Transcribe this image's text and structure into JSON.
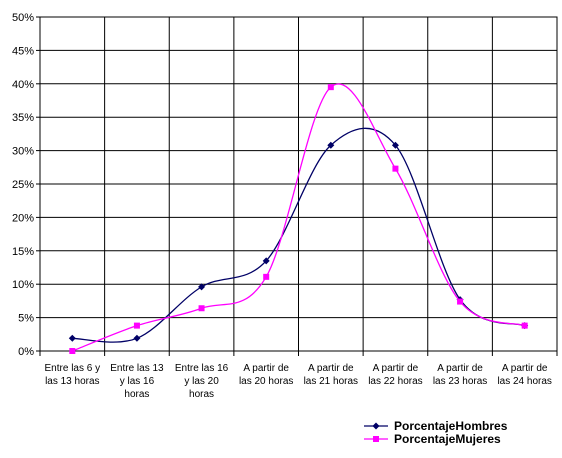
{
  "chart_data": {
    "type": "line",
    "title": "",
    "xlabel": "",
    "ylabel": "",
    "ylim": [
      0,
      0.5
    ],
    "yticks": [
      "0%",
      "5%",
      "10%",
      "15%",
      "20%",
      "25%",
      "30%",
      "35%",
      "40%",
      "45%",
      "50%"
    ],
    "categories": [
      [
        "Entre las 6 y",
        "las 13 horas"
      ],
      [
        "Entre las 13",
        "y las 16",
        "horas"
      ],
      [
        "Entre las 16",
        "y las 20",
        "horas"
      ],
      [
        "A partir de",
        "las 20 horas"
      ],
      [
        "A partir de",
        "las 21 horas"
      ],
      [
        "A partir de",
        "las 22 horas"
      ],
      [
        "A partir de",
        "las 23 horas"
      ],
      [
        "A partir de",
        "las 24 horas"
      ]
    ],
    "grid": true,
    "smooth": true,
    "legend_position": "bottom-right",
    "series": [
      {
        "name": "PorcentajeHombres",
        "color": "#000066",
        "marker": "diamond",
        "values": [
          0.019,
          0.019,
          0.096,
          0.135,
          0.308,
          0.308,
          0.077,
          0.038
        ]
      },
      {
        "name": "PorcentajeMujeres",
        "color": "#ff00ff",
        "marker": "square",
        "values": [
          0.0,
          0.038,
          0.064,
          0.111,
          0.395,
          0.273,
          0.074,
          0.038
        ]
      }
    ]
  }
}
